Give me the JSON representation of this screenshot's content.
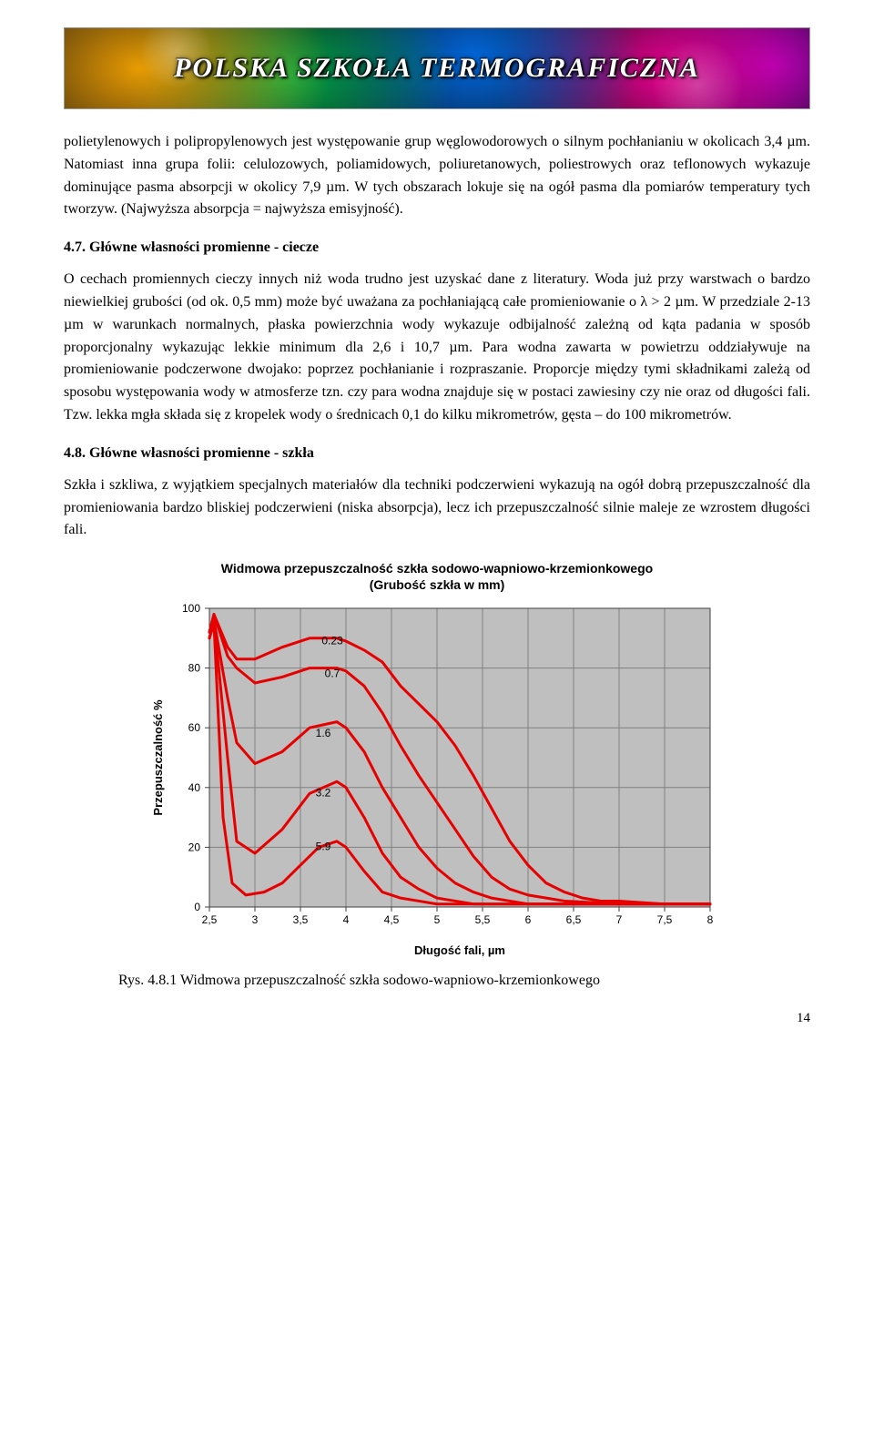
{
  "banner": {
    "title": "POLSKA SZKOŁA TERMOGRAFICZNA"
  },
  "para1": "polietylenowych i polipropylenowych jest występowanie grup węglowodorowych o silnym pochłanianiu w okolicach 3,4 µm. Natomiast inna grupa folii: celulozowych, poliamidowych, poliuretanowych, poliestrowych oraz teflonowych wykazuje dominujące pasma absorpcji w okolicy 7,9 µm. W tych obszarach lokuje się na ogół pasma dla pomiarów temperatury tych tworzyw. (Najwyższa absorpcja = najwyższa emisyjność).",
  "heading47": "4.7. Główne własności promienne - ciecze",
  "para2": "O cechach promiennych cieczy innych niż woda trudno jest uzyskać dane z literatury. Woda już przy warstwach o bardzo niewielkiej grubości (od ok. 0,5 mm) może być uważana za pochłaniającą całe promieniowanie o λ > 2 µm. W przedziale 2-13 µm w warunkach normalnych, płaska powierzchnia wody wykazuje odbijalność zależną od kąta padania w sposób proporcjonalny wykazując lekkie minimum dla 2,6 i 10,7 µm. Para wodna zawarta w powietrzu oddziaływuje na promieniowanie podczerwone dwojako: poprzez pochłanianie i rozpraszanie. Proporcje między tymi składnikami zależą od sposobu występowania wody w atmosferze tzn. czy para wodna znajduje się w postaci zawiesiny czy nie oraz od długości fali. Tzw. lekka mgła składa się z kropelek wody o średnicach 0,1 do kilku mikrometrów, gęsta – do 100 mikrometrów.",
  "heading48": "4.8. Główne własności promienne - szkła",
  "para3": "Szkła i szkliwa, z wyjątkiem specjalnych materiałów dla techniki podczerwieni wykazują na ogół dobrą przepuszczalność dla promieniowania bardzo bliskiej podczerwieni (niska absorpcja), lecz ich przepuszczalność silnie maleje ze wzrostem długości fali.",
  "chart": {
    "type": "line",
    "title_line1": "Widmowa przepuszczalność szkła sodowo-wapniowo-krzemionkowego",
    "title_line2": "(Grubość szkła w mm)",
    "ylabel": "Przepuszczalność %",
    "xlabel": "Długość fali, µm",
    "plot_bg": "#bfbfbf",
    "grid_color": "#808080",
    "axis_color": "#404040",
    "line_color": "#e60000",
    "line_width": 3,
    "tick_fontsize": 12,
    "label_fontsize": 13,
    "label_fontweight": 700,
    "label_fontfamily": "Arial, sans-serif",
    "xlim": [
      2.5,
      8.0
    ],
    "ylim": [
      0,
      100
    ],
    "xticks": [
      2.5,
      3,
      3.5,
      4,
      4.5,
      5,
      5.5,
      6,
      6.5,
      7,
      7.5,
      8
    ],
    "yticks": [
      0,
      20,
      40,
      60,
      80,
      100
    ],
    "series": [
      {
        "label": "0.23",
        "label_xy": [
          3.85,
          89
        ],
        "pts": [
          [
            2.5,
            92
          ],
          [
            2.55,
            98
          ],
          [
            2.7,
            87
          ],
          [
            2.8,
            83
          ],
          [
            3.0,
            83
          ],
          [
            3.3,
            87
          ],
          [
            3.6,
            90
          ],
          [
            3.9,
            90
          ],
          [
            4.0,
            89
          ],
          [
            4.2,
            86
          ],
          [
            4.4,
            82
          ],
          [
            4.6,
            74
          ],
          [
            4.8,
            68
          ],
          [
            5.0,
            62
          ],
          [
            5.2,
            54
          ],
          [
            5.4,
            44
          ],
          [
            5.6,
            33
          ],
          [
            5.8,
            22
          ],
          [
            6.0,
            14
          ],
          [
            6.2,
            8
          ],
          [
            6.4,
            5
          ],
          [
            6.6,
            3
          ],
          [
            6.8,
            2
          ],
          [
            7.0,
            2
          ],
          [
            7.5,
            1
          ],
          [
            8.0,
            1
          ]
        ]
      },
      {
        "label": "0.7",
        "label_xy": [
          3.85,
          78
        ],
        "pts": [
          [
            2.5,
            92
          ],
          [
            2.55,
            98
          ],
          [
            2.7,
            84
          ],
          [
            2.8,
            80
          ],
          [
            3.0,
            75
          ],
          [
            3.3,
            77
          ],
          [
            3.6,
            80
          ],
          [
            3.9,
            80
          ],
          [
            4.0,
            79
          ],
          [
            4.2,
            74
          ],
          [
            4.4,
            65
          ],
          [
            4.6,
            54
          ],
          [
            4.8,
            44
          ],
          [
            5.0,
            35
          ],
          [
            5.2,
            26
          ],
          [
            5.4,
            17
          ],
          [
            5.6,
            10
          ],
          [
            5.8,
            6
          ],
          [
            6.0,
            4
          ],
          [
            6.2,
            3
          ],
          [
            6.4,
            2
          ],
          [
            7.0,
            1
          ],
          [
            8.0,
            1
          ]
        ]
      },
      {
        "label": "1.6",
        "label_xy": [
          3.75,
          58
        ],
        "pts": [
          [
            2.5,
            90
          ],
          [
            2.55,
            96
          ],
          [
            2.7,
            70
          ],
          [
            2.8,
            55
          ],
          [
            3.0,
            48
          ],
          [
            3.3,
            52
          ],
          [
            3.6,
            60
          ],
          [
            3.9,
            62
          ],
          [
            4.0,
            60
          ],
          [
            4.2,
            52
          ],
          [
            4.4,
            40
          ],
          [
            4.6,
            30
          ],
          [
            4.8,
            20
          ],
          [
            5.0,
            13
          ],
          [
            5.2,
            8
          ],
          [
            5.4,
            5
          ],
          [
            5.6,
            3
          ],
          [
            5.8,
            2
          ],
          [
            6.0,
            1
          ],
          [
            7.0,
            1
          ],
          [
            8.0,
            1
          ]
        ]
      },
      {
        "label": "3.2",
        "label_xy": [
          3.75,
          38
        ],
        "pts": [
          [
            2.5,
            90
          ],
          [
            2.55,
            96
          ],
          [
            2.7,
            50
          ],
          [
            2.8,
            22
          ],
          [
            3.0,
            18
          ],
          [
            3.3,
            26
          ],
          [
            3.6,
            38
          ],
          [
            3.9,
            42
          ],
          [
            4.0,
            40
          ],
          [
            4.2,
            30
          ],
          [
            4.4,
            18
          ],
          [
            4.6,
            10
          ],
          [
            4.8,
            6
          ],
          [
            5.0,
            3
          ],
          [
            5.2,
            2
          ],
          [
            5.4,
            1
          ],
          [
            6.0,
            1
          ],
          [
            8.0,
            1
          ]
        ]
      },
      {
        "label": "5.9",
        "label_xy": [
          3.75,
          20
        ],
        "pts": [
          [
            2.5,
            90
          ],
          [
            2.55,
            95
          ],
          [
            2.65,
            30
          ],
          [
            2.75,
            8
          ],
          [
            2.9,
            4
          ],
          [
            3.1,
            5
          ],
          [
            3.3,
            8
          ],
          [
            3.5,
            14
          ],
          [
            3.7,
            20
          ],
          [
            3.9,
            22
          ],
          [
            4.0,
            20
          ],
          [
            4.2,
            12
          ],
          [
            4.4,
            5
          ],
          [
            4.6,
            3
          ],
          [
            4.8,
            2
          ],
          [
            5.0,
            1
          ],
          [
            6.0,
            1
          ],
          [
            8.0,
            1
          ]
        ]
      }
    ]
  },
  "caption": "Rys. 4.8.1 Widmowa przepuszczalność szkła sodowo-wapniowo-krzemionkowego",
  "page_number": "14"
}
